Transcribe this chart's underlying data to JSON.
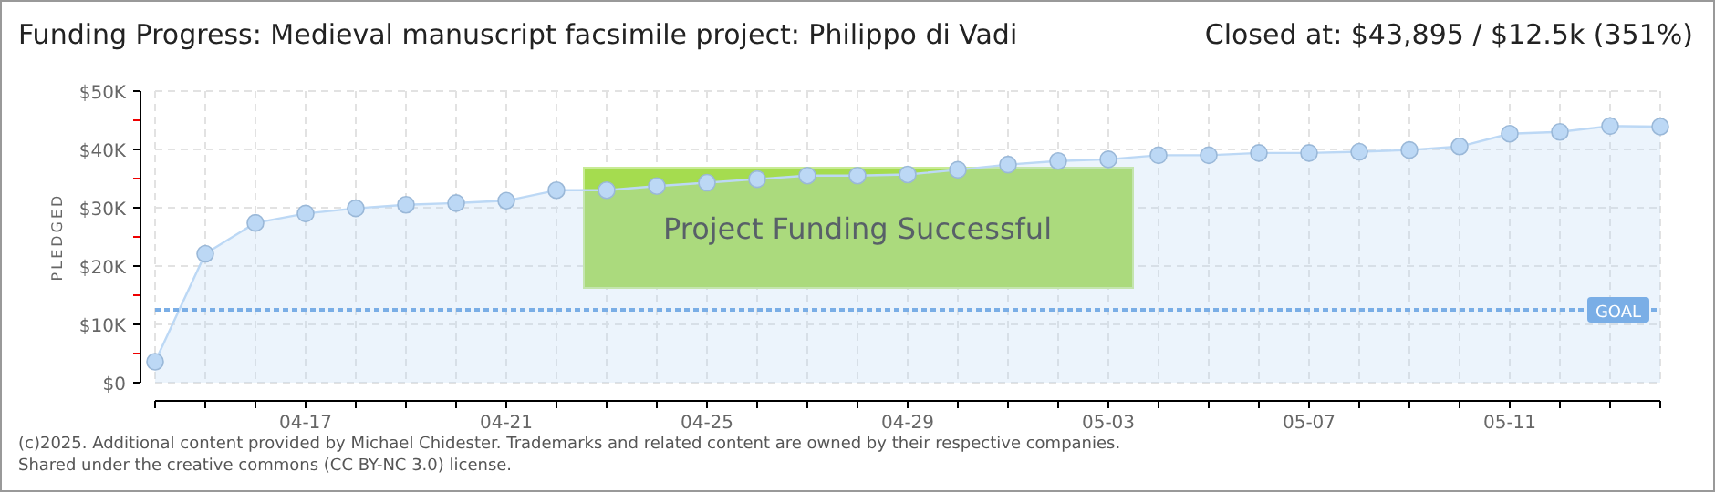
{
  "chart_data": {
    "type": "area",
    "title": "Funding Progress: Medieval manuscript facsimile project: Philippo di Vadi",
    "subtitle": "Closed at:  $43,895 /  $12.5k (351%)",
    "ylabel": "PLEDGED",
    "x": [
      "--04-14",
      "--04-15",
      "--04-16",
      "--04-17",
      "--04-18",
      "--04-19",
      "--04-20",
      "--04-21",
      "--04-22",
      "--04-23",
      "--04-24",
      "--04-25",
      "--04-26",
      "--04-27",
      "--04-28",
      "--04-29",
      "--04-30",
      "--05-01",
      "--05-02",
      "--05-03",
      "--05-04",
      "--05-05",
      "--05-06",
      "--05-07",
      "--05-08",
      "--05-09",
      "--05-10",
      "--05-11",
      "--05-12",
      "--05-13",
      "--05-14"
    ],
    "series": [
      {
        "color": "#bcd8f5",
        "values": [
          3600,
          22100,
          27400,
          29000,
          29900,
          30500,
          30800,
          31200,
          33000,
          33000,
          33700,
          34300,
          34900,
          35500,
          35500,
          35700,
          36500,
          37400,
          38000,
          38300,
          39000,
          39000,
          39400,
          39400,
          39600,
          39900,
          40500,
          42700,
          43000,
          44000,
          43900
        ]
      }
    ],
    "xlim": [
      "--04-14",
      "--05-14"
    ],
    "xticks": [
      {
        "value": "--04-14",
        "label": null
      },
      {
        "value": "--04-15",
        "label": null
      },
      {
        "value": "--04-16",
        "label": null
      },
      {
        "value": "--04-17",
        "label": "04-17"
      },
      {
        "value": "--04-18",
        "label": null
      },
      {
        "value": "--04-19",
        "label": null
      },
      {
        "value": "--04-20",
        "label": null
      },
      {
        "value": "--04-21",
        "label": "04-21"
      },
      {
        "value": "--04-22",
        "label": null
      },
      {
        "value": "--04-23",
        "label": null
      },
      {
        "value": "--04-24",
        "label": null
      },
      {
        "value": "--04-25",
        "label": "04-25"
      },
      {
        "value": "--04-26",
        "label": null
      },
      {
        "value": "--04-27",
        "label": null
      },
      {
        "value": "--04-28",
        "label": null
      },
      {
        "value": "--04-29",
        "label": "04-29"
      },
      {
        "value": "--04-30",
        "label": null
      },
      {
        "value": "--05-01",
        "label": null
      },
      {
        "value": "--05-02",
        "label": null
      },
      {
        "value": "--05-03",
        "label": "05-03"
      },
      {
        "value": "--05-04",
        "label": null
      },
      {
        "value": "--05-05",
        "label": null
      },
      {
        "value": "--05-06",
        "label": null
      },
      {
        "value": "--05-07",
        "label": "05-07"
      },
      {
        "value": "--05-08",
        "label": null
      },
      {
        "value": "--05-09",
        "label": null
      },
      {
        "value": "--05-10",
        "label": null
      },
      {
        "value": "--05-11",
        "label": "05-11"
      },
      {
        "value": "--05-12",
        "label": null
      },
      {
        "value": "--05-13",
        "label": null
      },
      {
        "value": "--05-14",
        "label": null
      }
    ],
    "ylim": [
      0,
      50000
    ],
    "yticks": [
      {
        "value": 0,
        "label": "$0"
      },
      {
        "value": 5000,
        "label": null
      },
      {
        "value": 10000,
        "label": "$10K"
      },
      {
        "value": 15000,
        "label": null
      },
      {
        "value": 20000,
        "label": "$20K"
      },
      {
        "value": 25000,
        "label": null
      },
      {
        "value": 30000,
        "label": "$30K"
      },
      {
        "value": 35000,
        "label": null
      },
      {
        "value": 40000,
        "label": "$40K"
      },
      {
        "value": 45000,
        "label": null
      },
      {
        "value": 50000,
        "label": "$50K"
      }
    ],
    "grid": true,
    "marker": "circle",
    "line_style": "solid",
    "ref_lines": [
      {
        "axis": "y",
        "value": 12500,
        "label": "GOAL",
        "color": "#7aaee6",
        "line_style": "dotted"
      }
    ],
    "annotations": [
      "Project Funding Successful",
      "(c)2025. Additional content provided by Michael Chidester. Trademarks and related content are owned by their respective companies.",
      "Shared under the creative commons (CC BY-NC 3.0) license."
    ]
  }
}
